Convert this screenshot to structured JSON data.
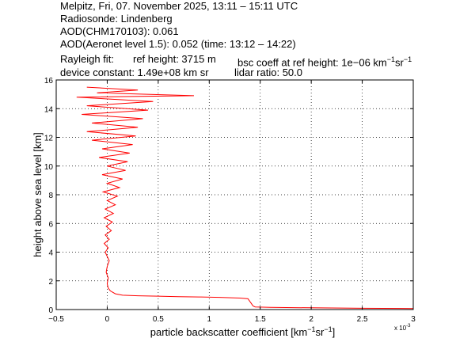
{
  "header": {
    "line1": "Melpitz, Fri, 07. November 2025, 13:11 – 15:11 UTC",
    "line2": "Radiosonde: Lindenberg",
    "line3": "AOD(CHM170103): 0.061",
    "line4": "AOD(Aeronet level 1.5): 0.052   (time: 13:12 – 14:22)",
    "rayleigh_label": "Rayleigh fit:",
    "ref_height": "ref height: 3715 m",
    "bsc_coeff_prefix": "bsc coeff at ref height: 1e−06 km",
    "device_constant": "device constant: 1.49e+08 km sr",
    "lidar_ratio": "lidar ratio: 50.0"
  },
  "chart_data": {
    "type": "line",
    "xlabel_prefix": "particle backscatter coefficient [km",
    "ylabel": "height above sea level [km]",
    "x_multiplier_label": "x 10",
    "x_multiplier_exp": "-3",
    "xlim": [
      -0.5,
      3.0
    ],
    "ylim": [
      0,
      16
    ],
    "xticks": [
      -0.5,
      0,
      0.5,
      1,
      1.5,
      2,
      2.5,
      3
    ],
    "xtick_labels": [
      "−0.5",
      "0",
      "0.5",
      "1",
      "1.5",
      "2",
      "2.5",
      "3"
    ],
    "yticks": [
      0,
      2,
      4,
      6,
      8,
      10,
      12,
      14,
      16
    ],
    "ytick_labels": [
      "0",
      "2",
      "4",
      "6",
      "8",
      "10",
      "12",
      "14",
      "16"
    ],
    "grid": true,
    "series": [
      {
        "color": "#ff0000",
        "points": [
          [
            3.0,
            0.07
          ],
          [
            2.5,
            0.09
          ],
          [
            2.0,
            0.12
          ],
          [
            1.6,
            0.15
          ],
          [
            1.45,
            0.18
          ],
          [
            1.43,
            0.25
          ],
          [
            1.42,
            0.35
          ],
          [
            1.41,
            0.45
          ],
          [
            1.4,
            0.55
          ],
          [
            1.39,
            0.65
          ],
          [
            1.38,
            0.75
          ],
          [
            1.3,
            0.8
          ],
          [
            1.1,
            0.85
          ],
          [
            0.9,
            0.88
          ],
          [
            0.7,
            0.9
          ],
          [
            0.5,
            0.93
          ],
          [
            0.3,
            0.96
          ],
          [
            0.15,
            1.0
          ],
          [
            0.08,
            1.1
          ],
          [
            0.03,
            1.3
          ],
          [
            0.01,
            1.5
          ],
          [
            0.0,
            1.8
          ],
          [
            0.01,
            2.2
          ],
          [
            -0.01,
            2.6
          ],
          [
            0.0,
            3.0
          ],
          [
            0.02,
            3.4
          ],
          [
            0.0,
            3.7
          ],
          [
            -0.02,
            4.0
          ],
          [
            0.01,
            4.3
          ],
          [
            -0.03,
            4.6
          ],
          [
            0.02,
            4.9
          ],
          [
            -0.02,
            5.2
          ],
          [
            0.04,
            5.5
          ],
          [
            -0.01,
            5.8
          ],
          [
            0.05,
            6.1
          ],
          [
            -0.03,
            6.4
          ],
          [
            0.06,
            6.7
          ],
          [
            -0.02,
            7.0
          ],
          [
            0.08,
            7.3
          ],
          [
            0.0,
            7.6
          ],
          [
            0.1,
            7.9
          ],
          [
            -0.04,
            8.2
          ],
          [
            0.12,
            8.5
          ],
          [
            0.0,
            8.8
          ],
          [
            0.15,
            9.1
          ],
          [
            -0.05,
            9.4
          ],
          [
            0.18,
            9.7
          ],
          [
            0.0,
            10.0
          ],
          [
            0.2,
            10.3
          ],
          [
            -0.08,
            10.6
          ],
          [
            0.22,
            10.9
          ],
          [
            -0.05,
            11.2
          ],
          [
            0.25,
            11.5
          ],
          [
            -0.15,
            11.8
          ],
          [
            0.28,
            12.1
          ],
          [
            -0.2,
            12.4
          ],
          [
            0.3,
            12.7
          ],
          [
            -0.15,
            13.0
          ],
          [
            0.35,
            13.3
          ],
          [
            -0.25,
            13.6
          ],
          [
            0.4,
            13.9
          ],
          [
            -0.2,
            14.2
          ],
          [
            0.45,
            14.5
          ],
          [
            -0.3,
            14.8
          ],
          [
            0.85,
            14.9
          ],
          [
            -0.1,
            15.1
          ],
          [
            0.3,
            15.3
          ],
          [
            -0.2,
            15.5
          ]
        ]
      }
    ]
  }
}
